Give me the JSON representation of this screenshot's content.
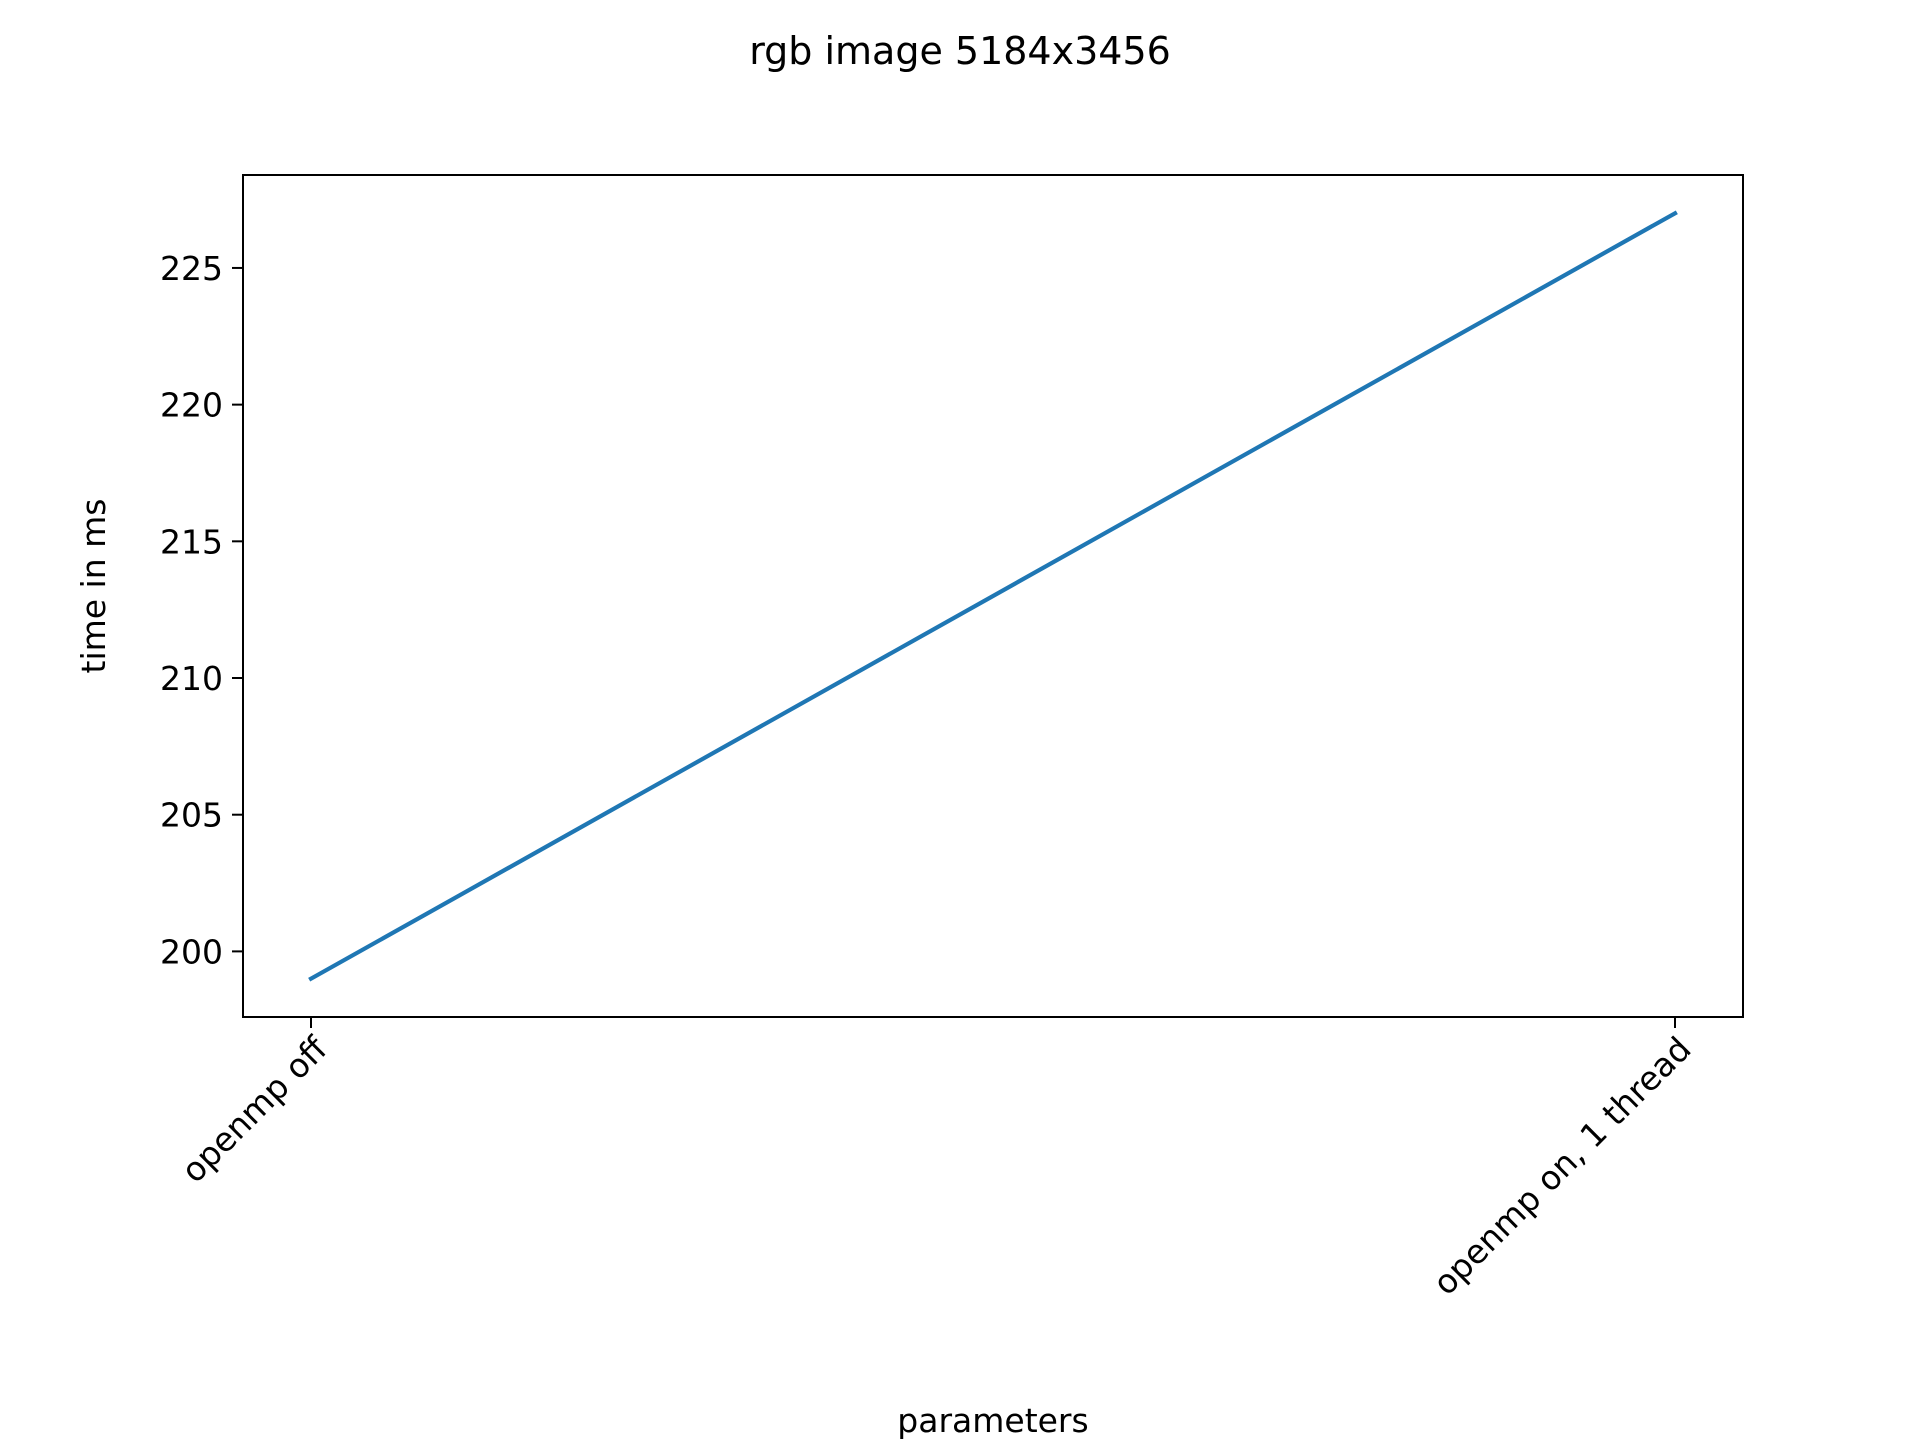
{
  "chart_data": {
    "type": "line",
    "title": "rgb image 5184x3456",
    "xlabel": "parameters",
    "ylabel": "time in ms",
    "categories": [
      "openmp off",
      "openmp on, 1 thread"
    ],
    "series": [
      {
        "values": [
          199,
          227
        ],
        "color": "#1f77b4"
      }
    ],
    "ylim": [
      197.6,
      228.4
    ],
    "yticks": [
      200,
      205,
      210,
      215,
      220,
      225
    ],
    "grid": false,
    "legend": "none"
  }
}
